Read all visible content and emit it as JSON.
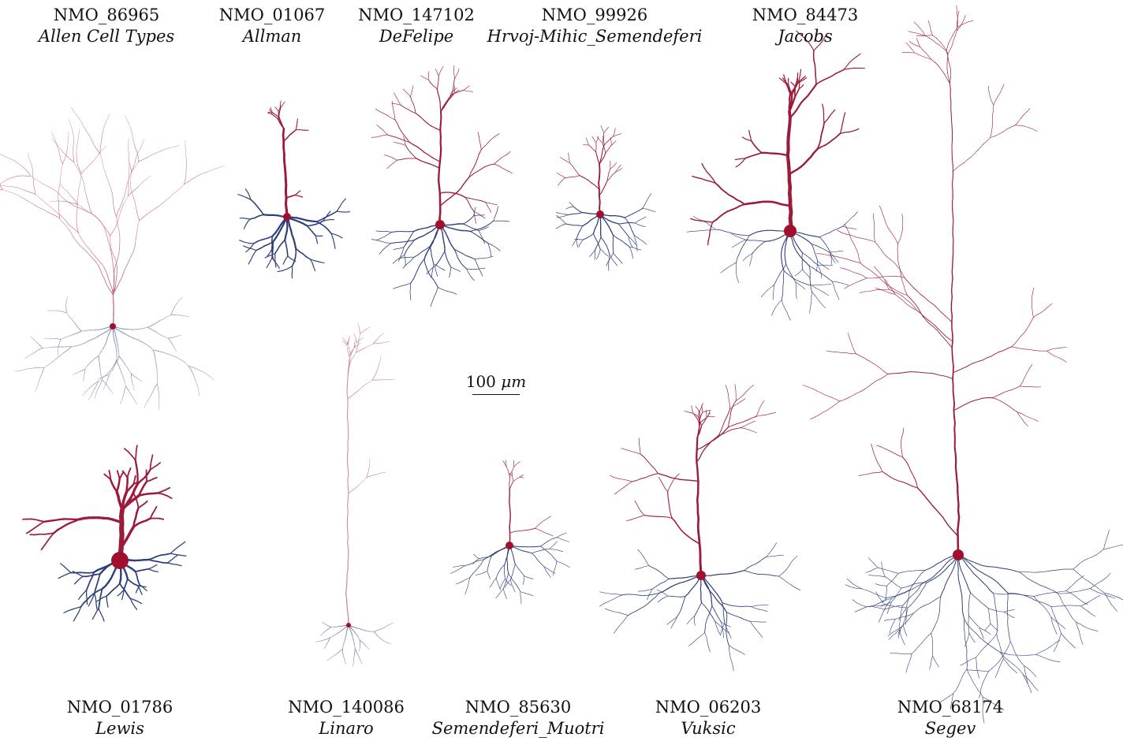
{
  "scale_bar": {
    "value": "100",
    "unit": "μm"
  },
  "neurons_top": [
    {
      "id": "NMO_86965",
      "source": "Allen Cell Types"
    },
    {
      "id": "NMO_01067",
      "source": "Allman"
    },
    {
      "id": "NMO_147102",
      "source": "DeFelipe"
    },
    {
      "id": "NMO_99926",
      "source": "Hrvoj-Mihic_Semendeferi"
    },
    {
      "id": "NMO_84473",
      "source": "Jacobs"
    }
  ],
  "neurons_bottom": [
    {
      "id": "NMO_01786",
      "source": "Lewis"
    },
    {
      "id": "NMO_140086",
      "source": "Linaro"
    },
    {
      "id": "NMO_85630",
      "source": "Semendeferi_Muotri"
    },
    {
      "id": "NMO_06203",
      "source": "Vuksic"
    },
    {
      "id": "NMO_68174",
      "source": "Segev"
    }
  ],
  "colors": {
    "apical": "#9b1b3a",
    "basal": "#2e3f7a",
    "soma": "#a0102c"
  }
}
